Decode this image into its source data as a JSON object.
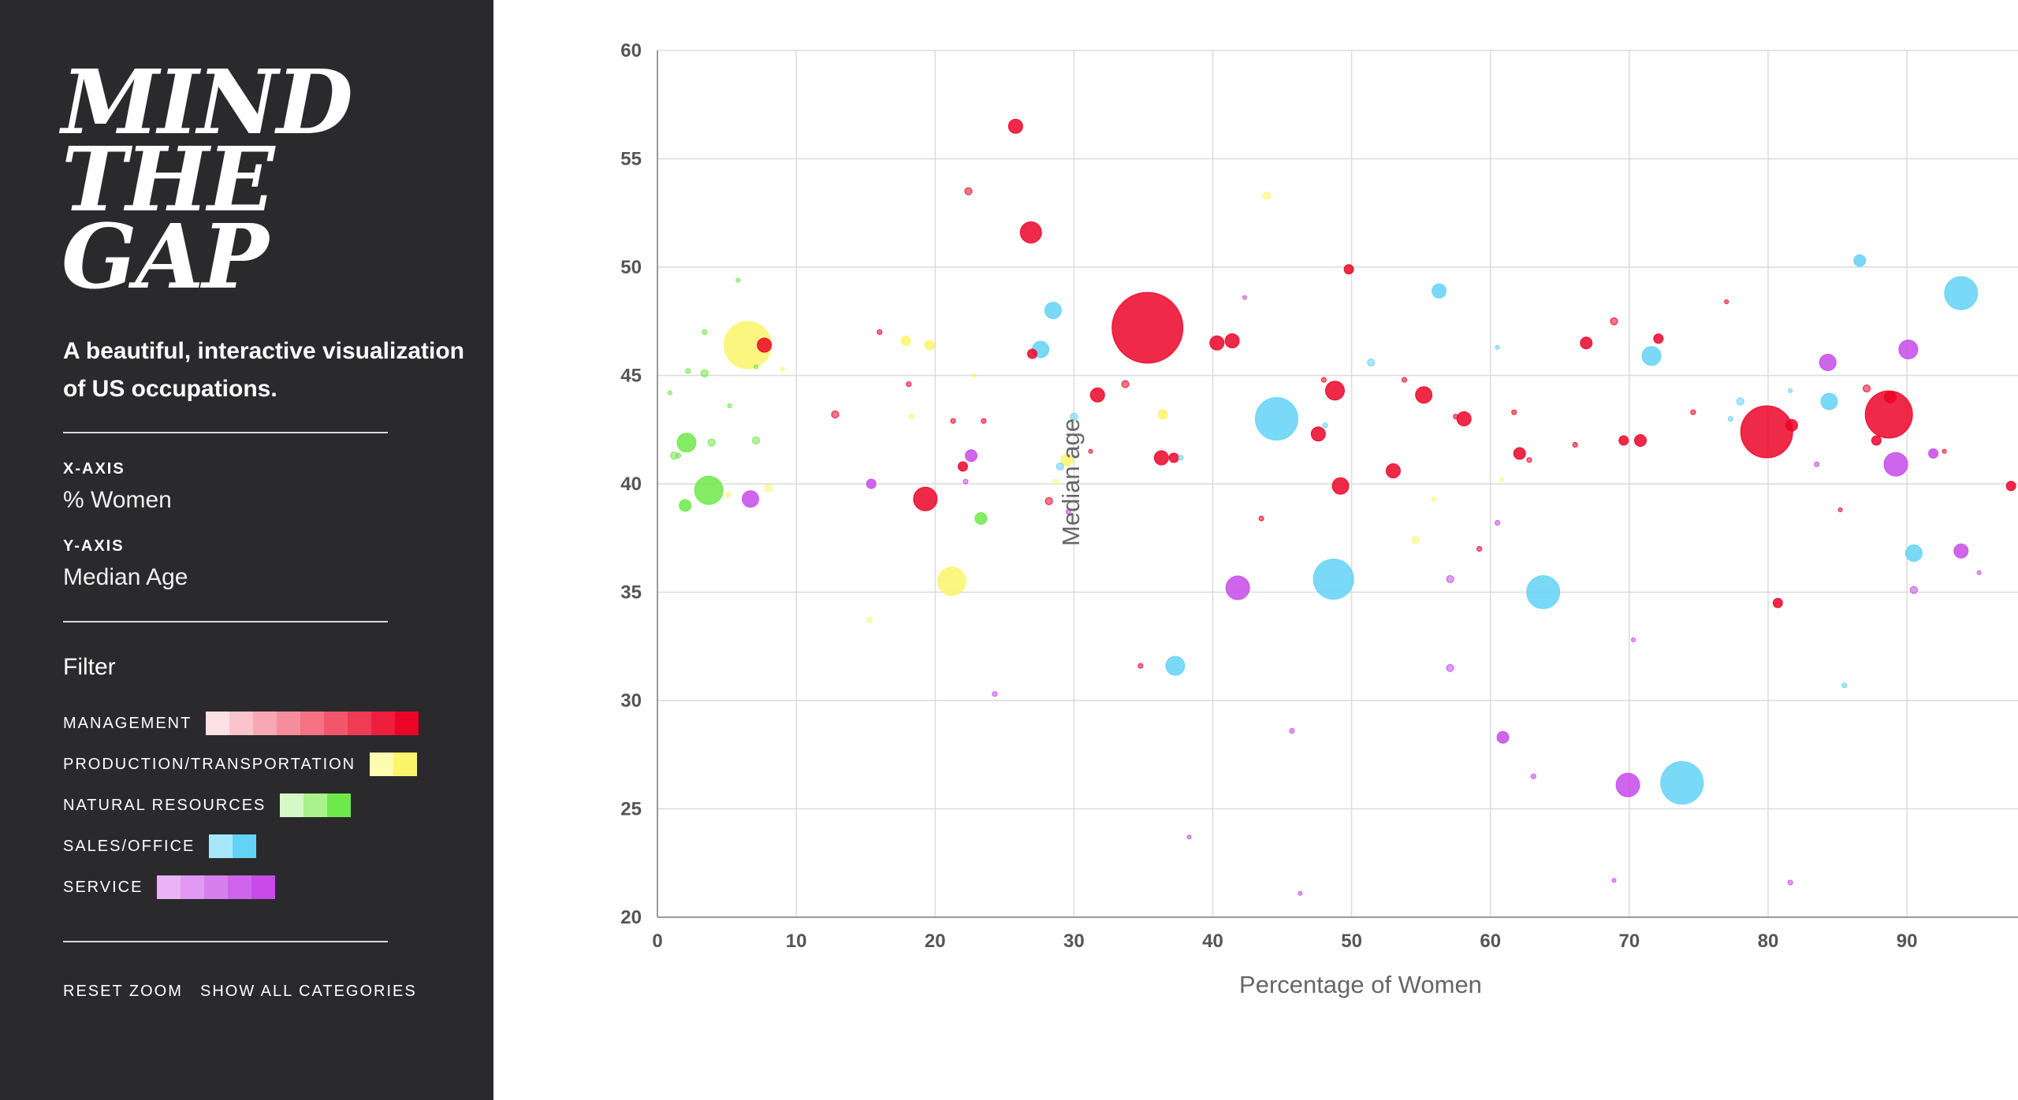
{
  "sidebar": {
    "logo_lines": [
      "MIND",
      "THE",
      "GAP"
    ],
    "tagline": "A beautiful, interactive visualization of US occupations.",
    "x_axis_label": "X-AXIS",
    "x_axis_value": "% Women",
    "y_axis_label": "Y-AXIS",
    "y_axis_value": "Median Age",
    "filter_title": "Filter",
    "filters": [
      {
        "label": "MANAGEMENT",
        "colors": [
          "#fde0e4",
          "#fbc4cc",
          "#f8a8b4",
          "#f68d9c",
          "#f47284",
          "#f2566c",
          "#f03b55",
          "#ee1f3d",
          "#ec0428"
        ]
      },
      {
        "label": "PRODUCTION/TRANSPORTATION",
        "colors": [
          "#fdfcb0",
          "#faf56a"
        ]
      },
      {
        "label": "NATURAL RESOURCES",
        "colors": [
          "#d6f8c6",
          "#a9f28c",
          "#6fe84a"
        ]
      },
      {
        "label": "SALES/OFFICE",
        "colors": [
          "#a7e7fb",
          "#63d2f6"
        ]
      },
      {
        "label": "SERVICE",
        "colors": [
          "#eab3f6",
          "#e199f3",
          "#d87ff0",
          "#cf64ec",
          "#c74ae9"
        ]
      }
    ],
    "reset_zoom": "RESET ZOOM",
    "show_all": "SHOW ALL CATEGORIES"
  },
  "chart_data": {
    "type": "scatter",
    "title": "",
    "xlabel": "Percentage of Women",
    "ylabel": "Median age",
    "xlim": [
      0,
      98
    ],
    "ylim": [
      20,
      60
    ],
    "xticks": [
      0,
      10,
      20,
      30,
      40,
      50,
      60,
      70,
      80,
      90
    ],
    "yticks": [
      20,
      25,
      30,
      35,
      40,
      45,
      50,
      55,
      60
    ],
    "grid": true,
    "size_unit": "relative",
    "series": [
      {
        "name": "MANAGEMENT",
        "color": "#ec0428",
        "points": [
          {
            "x": 35.3,
            "y": 47.2,
            "size": 30
          },
          {
            "x": 79.9,
            "y": 42.4,
            "size": 22
          },
          {
            "x": 88.7,
            "y": 43.2,
            "size": 20
          },
          {
            "x": 26.9,
            "y": 51.6,
            "size": 9
          },
          {
            "x": 25.8,
            "y": 56.5,
            "size": 6
          },
          {
            "x": 7.7,
            "y": 46.4,
            "size": 6
          },
          {
            "x": 19.3,
            "y": 39.3,
            "size": 10
          },
          {
            "x": 48.8,
            "y": 44.3,
            "size": 8
          },
          {
            "x": 49.2,
            "y": 39.9,
            "size": 7
          },
          {
            "x": 55.2,
            "y": 44.1,
            "size": 7
          },
          {
            "x": 31.7,
            "y": 44.1,
            "size": 6
          },
          {
            "x": 40.3,
            "y": 46.5,
            "size": 6
          },
          {
            "x": 41.4,
            "y": 46.6,
            "size": 6
          },
          {
            "x": 47.6,
            "y": 42.3,
            "size": 6
          },
          {
            "x": 58.1,
            "y": 43.0,
            "size": 6
          },
          {
            "x": 66.9,
            "y": 46.5,
            "size": 5
          },
          {
            "x": 62.1,
            "y": 41.4,
            "size": 5
          },
          {
            "x": 49.8,
            "y": 49.9,
            "size": 4
          },
          {
            "x": 37.2,
            "y": 41.2,
            "size": 4
          },
          {
            "x": 36.3,
            "y": 41.2,
            "size": 6
          },
          {
            "x": 27.0,
            "y": 46.0,
            "size": 4
          },
          {
            "x": 22.0,
            "y": 40.8,
            "size": 4
          },
          {
            "x": 72.1,
            "y": 46.7,
            "size": 4
          },
          {
            "x": 70.8,
            "y": 42.0,
            "size": 5
          },
          {
            "x": 69.6,
            "y": 42.0,
            "size": 4
          },
          {
            "x": 53.0,
            "y": 40.6,
            "size": 6
          },
          {
            "x": 80.7,
            "y": 34.5,
            "size": 4
          },
          {
            "x": 97.5,
            "y": 39.9,
            "size": 4
          },
          {
            "x": 81.7,
            "y": 42.7,
            "size": 5
          },
          {
            "x": 87.8,
            "y": 42.0,
            "size": 4
          },
          {
            "x": 88.8,
            "y": 44.0,
            "size": 5
          },
          {
            "x": 33.7,
            "y": 44.6,
            "size": 3
          },
          {
            "x": 28.2,
            "y": 39.2,
            "size": 3
          },
          {
            "x": 22.4,
            "y": 53.5,
            "size": 3
          },
          {
            "x": 68.9,
            "y": 47.5,
            "size": 3
          },
          {
            "x": 87.1,
            "y": 44.4,
            "size": 3
          },
          {
            "x": 12.8,
            "y": 43.2,
            "size": 3
          },
          {
            "x": 21.3,
            "y": 42.9,
            "size": 2
          },
          {
            "x": 61.7,
            "y": 43.3,
            "size": 2
          },
          {
            "x": 43.5,
            "y": 38.4,
            "size": 2
          },
          {
            "x": 16.0,
            "y": 47.0,
            "size": 2
          },
          {
            "x": 34.8,
            "y": 31.6,
            "size": 2
          },
          {
            "x": 57.5,
            "y": 43.1,
            "size": 2
          },
          {
            "x": 74.6,
            "y": 43.3,
            "size": 2
          },
          {
            "x": 53.8,
            "y": 44.8,
            "size": 2
          },
          {
            "x": 23.5,
            "y": 42.9,
            "size": 2
          },
          {
            "x": 48.0,
            "y": 44.8,
            "size": 2
          },
          {
            "x": 62.8,
            "y": 41.1,
            "size": 2
          },
          {
            "x": 66.1,
            "y": 41.8,
            "size": 2
          },
          {
            "x": 18.1,
            "y": 44.6,
            "size": 2
          },
          {
            "x": 59.2,
            "y": 37.0,
            "size": 2
          },
          {
            "x": 77.0,
            "y": 48.4,
            "size": 1
          },
          {
            "x": 31.2,
            "y": 41.5,
            "size": 1
          },
          {
            "x": 85.2,
            "y": 38.8,
            "size": 1
          },
          {
            "x": 92.7,
            "y": 41.5,
            "size": 1
          }
        ]
      },
      {
        "name": "PRODUCTION/TRANSPORTATION",
        "color": "#faf56a",
        "points": [
          {
            "x": 6.5,
            "y": 46.4,
            "size": 20
          },
          {
            "x": 21.2,
            "y": 35.5,
            "size": 12
          },
          {
            "x": 29.5,
            "y": 41.1,
            "size": 5
          },
          {
            "x": 36.4,
            "y": 43.2,
            "size": 4
          },
          {
            "x": 17.9,
            "y": 46.6,
            "size": 4
          },
          {
            "x": 19.6,
            "y": 46.4,
            "size": 4
          },
          {
            "x": 8.0,
            "y": 39.8,
            "size": 3
          },
          {
            "x": 43.9,
            "y": 53.3,
            "size": 3
          },
          {
            "x": 54.6,
            "y": 37.4,
            "size": 3
          },
          {
            "x": 15.3,
            "y": 33.7,
            "size": 2
          },
          {
            "x": 5.1,
            "y": 39.5,
            "size": 2
          },
          {
            "x": 18.3,
            "y": 43.1,
            "size": 2
          },
          {
            "x": 28.7,
            "y": 40.1,
            "size": 2
          },
          {
            "x": 55.9,
            "y": 39.3,
            "size": 1
          },
          {
            "x": 60.8,
            "y": 40.2,
            "size": 1
          },
          {
            "x": 22.8,
            "y": 45.0,
            "size": 1
          },
          {
            "x": 9.0,
            "y": 45.3,
            "size": 1
          }
        ]
      },
      {
        "name": "NATURAL RESOURCES",
        "color": "#6fe84a",
        "points": [
          {
            "x": 3.7,
            "y": 39.7,
            "size": 12
          },
          {
            "x": 2.1,
            "y": 41.9,
            "size": 8
          },
          {
            "x": 2.0,
            "y": 39.0,
            "size": 5
          },
          {
            "x": 23.3,
            "y": 38.4,
            "size": 5
          },
          {
            "x": 1.2,
            "y": 41.3,
            "size": 3
          },
          {
            "x": 3.9,
            "y": 41.9,
            "size": 3
          },
          {
            "x": 7.1,
            "y": 42.0,
            "size": 3
          },
          {
            "x": 3.4,
            "y": 45.1,
            "size": 3
          },
          {
            "x": 2.2,
            "y": 45.2,
            "size": 2
          },
          {
            "x": 3.4,
            "y": 47.0,
            "size": 2
          },
          {
            "x": 5.8,
            "y": 49.4,
            "size": 1
          },
          {
            "x": 1.5,
            "y": 41.3,
            "size": 2
          },
          {
            "x": 0.9,
            "y": 44.2,
            "size": 1
          },
          {
            "x": 7.1,
            "y": 45.4,
            "size": 1
          },
          {
            "x": 5.2,
            "y": 43.6,
            "size": 1
          }
        ]
      },
      {
        "name": "SALES/OFFICE",
        "color": "#63d2f6",
        "points": [
          {
            "x": 73.8,
            "y": 26.2,
            "size": 18
          },
          {
            "x": 44.6,
            "y": 43.0,
            "size": 18
          },
          {
            "x": 48.7,
            "y": 35.6,
            "size": 17
          },
          {
            "x": 63.8,
            "y": 35.0,
            "size": 14
          },
          {
            "x": 93.9,
            "y": 48.8,
            "size": 14
          },
          {
            "x": 37.3,
            "y": 31.6,
            "size": 8
          },
          {
            "x": 71.6,
            "y": 45.9,
            "size": 8
          },
          {
            "x": 90.5,
            "y": 36.8,
            "size": 7
          },
          {
            "x": 84.4,
            "y": 43.8,
            "size": 7
          },
          {
            "x": 28.5,
            "y": 48.0,
            "size": 7
          },
          {
            "x": 27.6,
            "y": 46.2,
            "size": 7
          },
          {
            "x": 56.3,
            "y": 48.9,
            "size": 6
          },
          {
            "x": 86.6,
            "y": 50.3,
            "size": 5
          },
          {
            "x": 29.0,
            "y": 40.8,
            "size": 3
          },
          {
            "x": 30.0,
            "y": 43.1,
            "size": 3
          },
          {
            "x": 51.4,
            "y": 45.6,
            "size": 3
          },
          {
            "x": 78.0,
            "y": 43.8,
            "size": 3
          },
          {
            "x": 85.5,
            "y": 30.7,
            "size": 2
          },
          {
            "x": 48.1,
            "y": 42.7,
            "size": 2
          },
          {
            "x": 37.7,
            "y": 41.2,
            "size": 2
          },
          {
            "x": 60.5,
            "y": 46.3,
            "size": 1
          },
          {
            "x": 77.3,
            "y": 43.0,
            "size": 2
          },
          {
            "x": 81.6,
            "y": 44.3,
            "size": 1
          }
        ]
      },
      {
        "name": "SERVICE",
        "color": "#c74ae9",
        "points": [
          {
            "x": 69.9,
            "y": 26.1,
            "size": 10
          },
          {
            "x": 41.8,
            "y": 35.2,
            "size": 10
          },
          {
            "x": 89.2,
            "y": 40.9,
            "size": 10
          },
          {
            "x": 90.1,
            "y": 46.2,
            "size": 8
          },
          {
            "x": 6.7,
            "y": 39.3,
            "size": 7
          },
          {
            "x": 84.3,
            "y": 45.6,
            "size": 7
          },
          {
            "x": 93.9,
            "y": 36.9,
            "size": 6
          },
          {
            "x": 60.9,
            "y": 28.3,
            "size": 5
          },
          {
            "x": 22.6,
            "y": 41.3,
            "size": 5
          },
          {
            "x": 15.4,
            "y": 40.0,
            "size": 4
          },
          {
            "x": 91.9,
            "y": 41.4,
            "size": 4
          },
          {
            "x": 57.1,
            "y": 35.6,
            "size": 3
          },
          {
            "x": 57.1,
            "y": 31.5,
            "size": 3
          },
          {
            "x": 90.5,
            "y": 35.1,
            "size": 3
          },
          {
            "x": 60.5,
            "y": 38.2,
            "size": 2
          },
          {
            "x": 29.6,
            "y": 38.7,
            "size": 2
          },
          {
            "x": 63.1,
            "y": 26.5,
            "size": 2
          },
          {
            "x": 45.7,
            "y": 28.6,
            "size": 2
          },
          {
            "x": 81.6,
            "y": 21.6,
            "size": 2
          },
          {
            "x": 68.9,
            "y": 21.7,
            "size": 1
          },
          {
            "x": 24.3,
            "y": 30.3,
            "size": 2
          },
          {
            "x": 38.3,
            "y": 23.7,
            "size": 1
          },
          {
            "x": 83.5,
            "y": 40.9,
            "size": 2
          },
          {
            "x": 95.2,
            "y": 35.9,
            "size": 1
          },
          {
            "x": 22.2,
            "y": 40.1,
            "size": 2
          },
          {
            "x": 46.3,
            "y": 21.1,
            "size": 1
          },
          {
            "x": 70.3,
            "y": 32.8,
            "size": 1
          },
          {
            "x": 42.3,
            "y": 48.6,
            "size": 1
          }
        ]
      }
    ]
  }
}
